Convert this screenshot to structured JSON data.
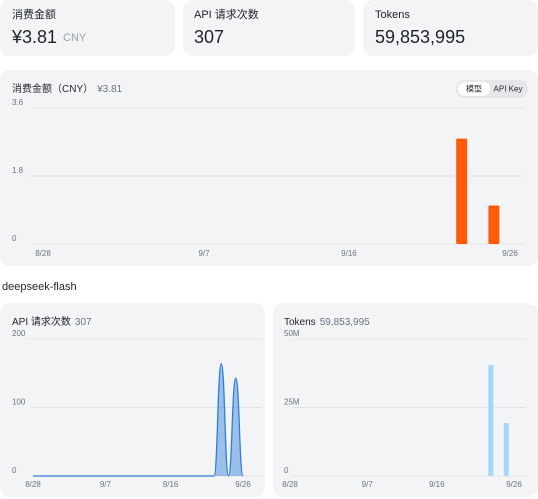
{
  "cards": [
    {
      "label": "消费金额",
      "value": "¥3.81",
      "unit": "CNY"
    },
    {
      "label": "API 请求次数",
      "value": "307"
    },
    {
      "label": "Tokens",
      "value": "59,853,995"
    }
  ],
  "toggle": [
    "模型",
    "API Key"
  ],
  "section_title": "deepseek-flash",
  "chart_data": [
    {
      "type": "bar",
      "title": "消费金额（CNY）",
      "subtitle": "¥3.81",
      "categories": [
        "8/28",
        null,
        null,
        null,
        null,
        null,
        null,
        null,
        null,
        null,
        "9/7",
        null,
        null,
        null,
        null,
        null,
        null,
        null,
        null,
        "9/16",
        null,
        null,
        null,
        null,
        null,
        null,
        null,
        null,
        null,
        "9/26"
      ],
      "values": [
        0,
        0,
        0,
        0,
        0,
        0,
        0,
        0,
        0,
        0,
        0,
        0,
        0,
        0,
        0,
        0,
        0,
        0,
        0,
        0,
        0,
        0,
        0,
        0,
        0,
        0,
        2.79,
        0,
        1.02,
        0
      ],
      "color": "#ff5a0a",
      "ylim": [
        0,
        3.6
      ],
      "yticks": [
        0,
        1.8,
        3.6
      ],
      "grid": true
    },
    {
      "type": "area",
      "title": "API 请求次数",
      "subtitle": "307",
      "categories": [
        "8/28",
        null,
        null,
        null,
        null,
        null,
        null,
        null,
        null,
        null,
        "9/7",
        null,
        null,
        null,
        null,
        null,
        null,
        null,
        null,
        "9/16",
        null,
        null,
        null,
        null,
        null,
        null,
        null,
        null,
        null,
        "9/26"
      ],
      "values": [
        0,
        0,
        0,
        0,
        0,
        0,
        0,
        0,
        0,
        0,
        0,
        0,
        0,
        0,
        0,
        0,
        0,
        0,
        0,
        0,
        0,
        0,
        0,
        0,
        0,
        0,
        164,
        0,
        143,
        0
      ],
      "color": "#2f7fd8",
      "ylim": [
        0,
        200
      ],
      "yticks": [
        0,
        100,
        200
      ],
      "grid": true
    },
    {
      "type": "bar",
      "title": "Tokens",
      "subtitle": "59,853,995",
      "categories": [
        "8/28",
        null,
        null,
        null,
        null,
        null,
        null,
        null,
        null,
        null,
        "9/7",
        null,
        null,
        null,
        null,
        null,
        null,
        null,
        null,
        "9/16",
        null,
        null,
        null,
        null,
        null,
        null,
        null,
        null,
        null,
        "9/26"
      ],
      "values": [
        0,
        0,
        0,
        0,
        0,
        0,
        0,
        0,
        0,
        0,
        0,
        0,
        0,
        0,
        0,
        0,
        0,
        0,
        0,
        0,
        0,
        0,
        0,
        0,
        0,
        0,
        40500000,
        0,
        19350000,
        0
      ],
      "color": "#a3d6f8",
      "ylim": [
        0,
        50000000
      ],
      "yticks": [
        0,
        {
          "value": 25000000,
          "label": "25M"
        },
        {
          "value": 50000000,
          "label": "50M"
        }
      ],
      "grid": true
    }
  ]
}
